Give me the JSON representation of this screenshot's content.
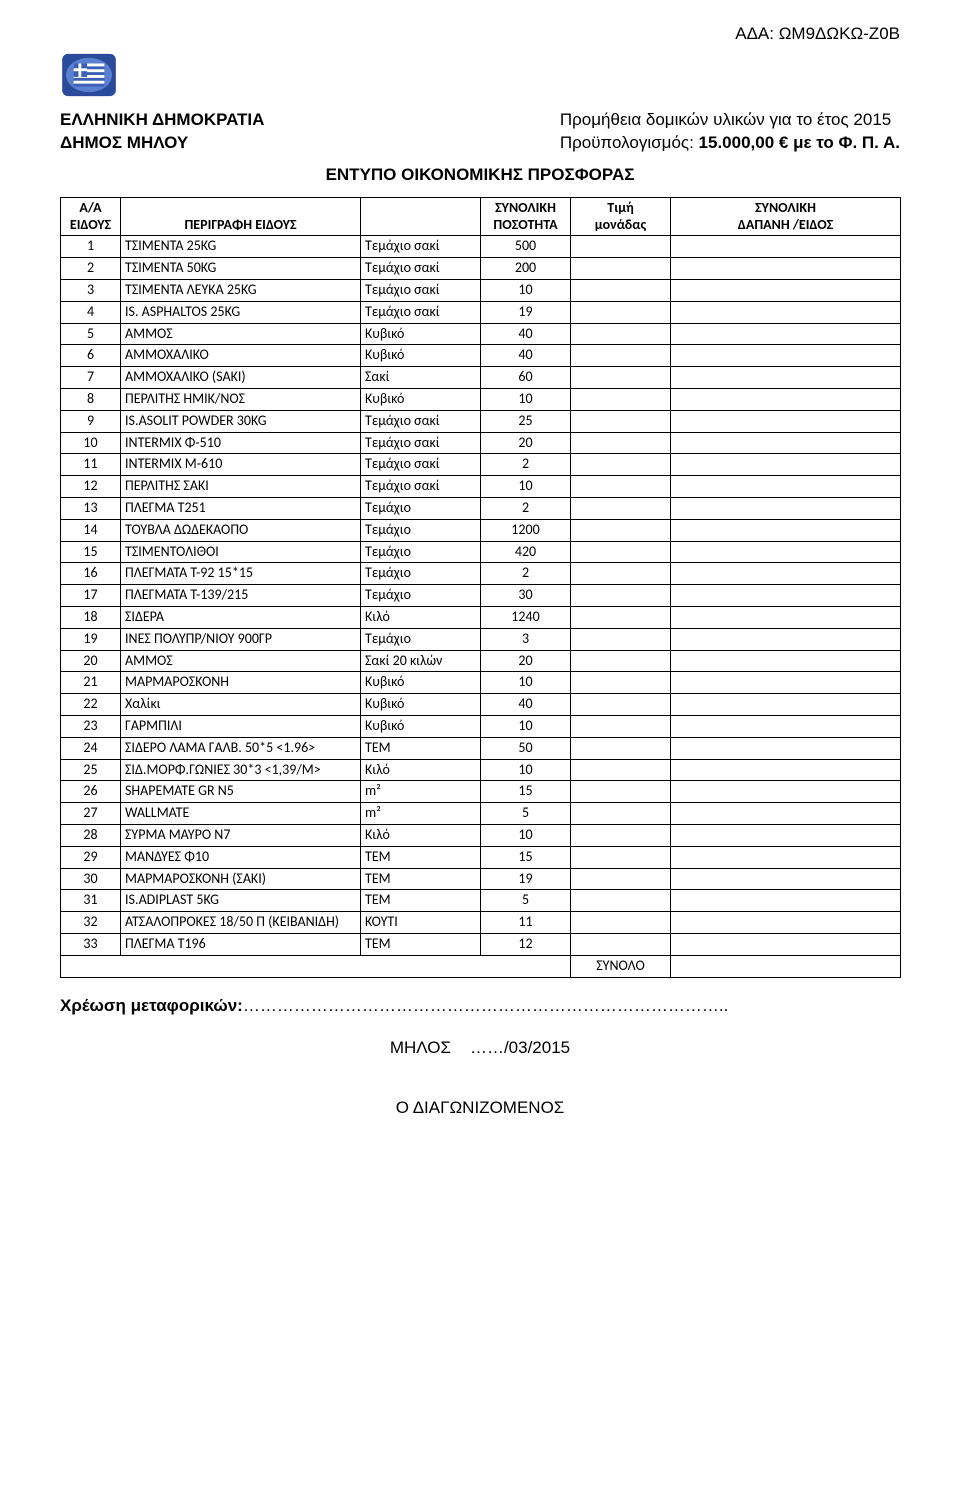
{
  "ada_label": "ΑΔΑ: ΩΜ9ΔΩΚΩ-Ζ0Β",
  "emblem": {
    "frame_color": "#2a4a9a",
    "inner_bg": "#5a7fcf",
    "field_color": "#3b5fb6",
    "stripe_color": "#ffffff"
  },
  "org": {
    "line1": "ΕΛΛΗΝΙΚΗ ΔΗΜΟΚΡΑΤΙΑ",
    "line2": "ΔΗΜΟΣ ΜΗΛΟΥ"
  },
  "procurement": {
    "line1": "Προμήθεια δομικών υλικών για το έτος 2015",
    "line2_prefix": "Προϋπολογισμός: ",
    "line2_amount": "15.000,00 €",
    "line2_suffix": " με το Φ. Π. Α."
  },
  "form_title": "ΕΝΤΥΠΟ ΟΙΚΟΝΟΜΙΚΗΣ ΠΡΟΣΦΟΡΑΣ",
  "columns": {
    "num": "Α/Α\nΕΙΔΟΥΣ",
    "desc": "ΠΕΡΙΓΡΑΦΗ ΕΙΔΟΥΣ",
    "unit": "",
    "qty": "ΣΥΝΟΛΙΚΗ\nΠΟΣΟΤΗΤΑ",
    "price": "Τιμή\nμονάδας",
    "cost": "ΣΥΝΟΛΙΚΗ\nΔΑΠΑΝΗ /ΕΙΔΟΣ"
  },
  "rows": [
    {
      "n": "1",
      "d": "ΤΣΙΜΕΝΤΑ 25KG",
      "u": "Τεμάχιο σακί",
      "q": "500"
    },
    {
      "n": "2",
      "d": "ΤΣΙΜΕΝΤΑ 50KG",
      "u": "Τεμάχιο σακί",
      "q": "200"
    },
    {
      "n": "3",
      "d": "ΤΣΙΜΕΝΤΑ ΛΕΥΚΑ 25KG",
      "u": "Τεμάχιο σακί",
      "q": "10"
    },
    {
      "n": "4",
      "d": "IS. ASPHALTOS 25KG",
      "u": "Τεμάχιο σακί",
      "q": "19"
    },
    {
      "n": "5",
      "d": "ΑΜΜΟΣ",
      "u": "Κυβικό",
      "q": "40"
    },
    {
      "n": "6",
      "d": "ΑΜΜΟΧΑΛΙΚΟ",
      "u": "Κυβικό",
      "q": "40"
    },
    {
      "n": "7",
      "d": "ΑΜΜΟΧΑΛΙΚΟ (SAKI)",
      "u": "Σακί",
      "q": "60"
    },
    {
      "n": "8",
      "d": "ΠΕΡΛΙΤΗΣ ΗΜΙΚ/ΝΟΣ",
      "u": "Κυβικό",
      "q": "10"
    },
    {
      "n": "9",
      "d": "IS.ASOLIT POWDER 30KG",
      "u": "Τεμάχιο σακί",
      "q": "25"
    },
    {
      "n": "10",
      "d": "INTERMIX Φ-510",
      "u": "Τεμάχιο σακί",
      "q": "20"
    },
    {
      "n": "11",
      "d": "INTERMIX M-610",
      "u": "Τεμάχιο σακί",
      "q": "2"
    },
    {
      "n": "12",
      "d": "ΠΕΡΛΙΤΗΣ ΣΑΚΙ",
      "u": "Τεμάχιο σακί",
      "q": "10"
    },
    {
      "n": "13",
      "d": "ΠΛΕΓΜΑ Τ251",
      "u": "Τεμάχιο",
      "q": "2"
    },
    {
      "n": "14",
      "d": "ΤΟΥΒΛΑ ΔΩΔΕΚΑΟΠΟ",
      "u": "Τεμάχιο",
      "q": "1200"
    },
    {
      "n": "15",
      "d": "ΤΣΙΜΕΝΤΟΛΙΘΟΙ",
      "u": "Τεμάχιο",
      "q": "420"
    },
    {
      "n": "16",
      "d": "ΠΛΕΓΜΑΤΑ Τ-92 15*15",
      "u": "Τεμάχιο",
      "q": "2"
    },
    {
      "n": "17",
      "d": "ΠΛΕΓΜΑΤΑ Τ-139/215",
      "u": "Τεμάχιο",
      "q": "30"
    },
    {
      "n": "18",
      "d": "ΣΙΔΕΡΑ",
      "u": "Κιλό",
      "q": "1240"
    },
    {
      "n": "19",
      "d": "ΙΝΕΣ ΠΟΛΥΠΡ/ΝΙΟΥ 900ΓΡ",
      "u": "Τεμάχιο",
      "q": "3"
    },
    {
      "n": "20",
      "d": "ΆΜΜΟΣ",
      "u": "Σακί 20 κιλών",
      "q": "20"
    },
    {
      "n": "21",
      "d": "ΜΑΡΜΑΡΟΣΚΟΝΗ",
      "u": "Κυβικό",
      "q": "10"
    },
    {
      "n": "22",
      "d": "Χαλίκι",
      "u": "Κυβικό",
      "q": "40"
    },
    {
      "n": "23",
      "d": "ΓΑΡΜΠΙΛΙ",
      "u": "Κυβικό",
      "q": "10"
    },
    {
      "n": "24",
      "d": "ΣΙΔΕΡΟ ΛΑΜΑ ΓΑΛΒ. 50*5 <1.96>",
      "u": "ΤΕΜ",
      "q": "50"
    },
    {
      "n": "25",
      "d": "ΣΙΔ.ΜΟΡΦ.ΓΩΝΙΕΣ 30*3 <1,39/Μ>",
      "u": "Κιλό",
      "q": "10"
    },
    {
      "n": "26",
      "d": "SHAPEMATE GR N5",
      "u": "m²",
      "q": "15"
    },
    {
      "n": "27",
      "d": "WALLMATE",
      "u": "m²",
      "q": "5"
    },
    {
      "n": "28",
      "d": "ΣΥΡΜΑ ΜΑΥΡΟ Ν7",
      "u": "Κιλό",
      "q": "10"
    },
    {
      "n": "29",
      "d": "ΜΑΝΔΥΕΣ Φ10",
      "u": "ΤΕΜ",
      "q": "15"
    },
    {
      "n": "30",
      "d": "ΜΑΡΜΑΡΟΣΚΟΝΗ (ΣΑΚΙ)",
      "u": "ΤΕΜ",
      "q": "19"
    },
    {
      "n": "31",
      "d": "IS.ADIPLAST 5KG",
      "u": "ΤΕΜ",
      "q": "5"
    },
    {
      "n": "32",
      "d": "ΑΤΣΑΛΟΠΡΟΚΕΣ 18/50 Π (ΚΕΙΒΑΝΙΔΗ)",
      "u": "ΚΟΥΤΙ",
      "q": "11"
    },
    {
      "n": "33",
      "d": "ΠΛΕΓΜΑ Τ196",
      "u": "ΤΕΜ",
      "q": "12"
    }
  ],
  "total_label": "ΣΥΝΟΛΟ",
  "shipping_label": "Χρέωση μεταφορικών:",
  "shipping_dots": "…………………………………………………………………………..",
  "date_city": "ΜΗΛΟΣ",
  "date_dots": "……/03/2015",
  "bidder_label": "Ο ΔΙΑΓΩΝΙΖΟΜΕΝΟΣ"
}
